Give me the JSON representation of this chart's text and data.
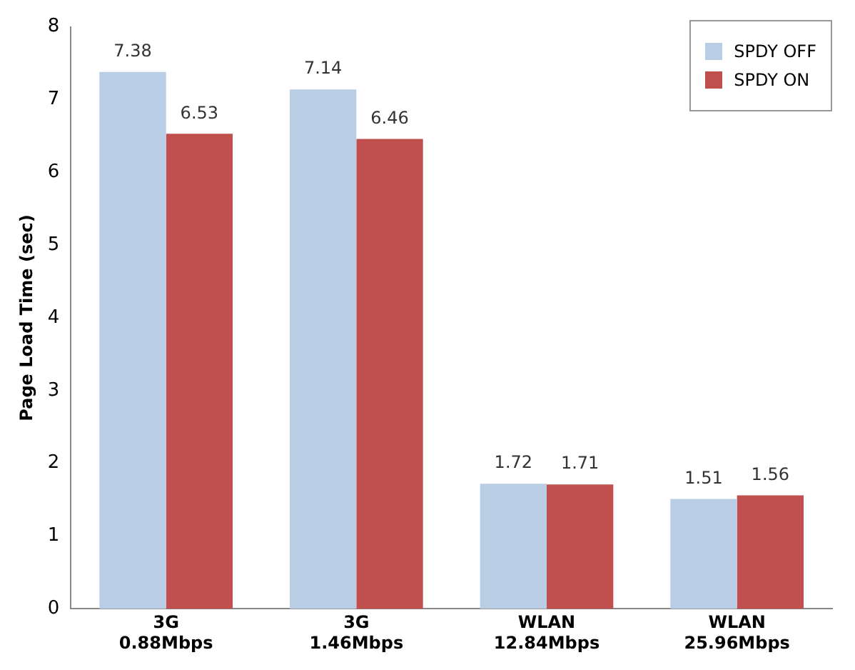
{
  "chart_data": {
    "type": "bar",
    "ylabel": "Page Load Time (sec)",
    "categories": [
      "3G 0.88Mbps",
      "3G 1.46Mbps",
      "WLAN 12.84Mbps",
      "WLAN 25.96Mbps"
    ],
    "series": [
      {
        "name": "SPDY OFF",
        "color": "#b9cde5",
        "values": [
          7.38,
          7.14,
          1.72,
          1.51
        ]
      },
      {
        "name": "SPDY ON",
        "color": "#c0504d",
        "values": [
          6.53,
          6.46,
          1.71,
          1.56
        ]
      }
    ],
    "ylim": [
      0,
      8
    ],
    "yticks": [
      0,
      1,
      2,
      3,
      4,
      5,
      6,
      7,
      8
    ],
    "grid": false,
    "legend": "top right",
    "data_labels": true
  }
}
